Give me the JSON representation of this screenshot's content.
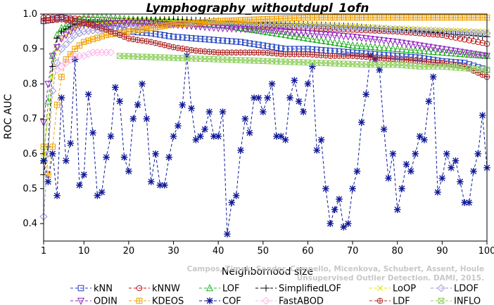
{
  "chart_data": {
    "type": "line",
    "title": "Lymphography_withoutdupl_1ofn",
    "xlabel": "Neighborhood size",
    "ylabel": "ROC AUC",
    "xlim": [
      1,
      100
    ],
    "ylim": [
      0.35,
      1.0
    ],
    "xticks": [
      1,
      10,
      20,
      30,
      40,
      50,
      60,
      70,
      80,
      90,
      100
    ],
    "yticks": [
      0.4,
      0.5,
      0.6,
      0.7,
      0.8,
      0.9,
      1.0
    ],
    "xtick_labels": [
      "1",
      "10",
      "20",
      "30",
      "40",
      "50",
      "60",
      "70",
      "80",
      "90",
      "100"
    ],
    "ytick_labels": [
      "0.4",
      "0.5",
      "0.6",
      "0.7",
      "0.8",
      "0.9",
      "1.0"
    ],
    "grid": false,
    "legend_position": "bottom",
    "watermark": [
      "Campos, Zimek, Sander, Campello, Micenkova, Schubert, Assent, Houle",
      "Unsupervised Outlier Detection. DAMI, 2015."
    ],
    "series": [
      {
        "name": "kNN",
        "color": "#1f3fbf",
        "marker": "square",
        "dash": "4,3",
        "points": [
          [
            1,
            0.98
          ],
          [
            5,
            0.99
          ],
          [
            10,
            0.975
          ],
          [
            15,
            0.965
          ],
          [
            20,
            0.95
          ],
          [
            25,
            0.945
          ],
          [
            30,
            0.935
          ],
          [
            35,
            0.93
          ],
          [
            40,
            0.925
          ],
          [
            45,
            0.92
          ],
          [
            50,
            0.91
          ],
          [
            55,
            0.9
          ],
          [
            60,
            0.9
          ],
          [
            65,
            0.895
          ],
          [
            70,
            0.89
          ],
          [
            75,
            0.885
          ],
          [
            80,
            0.88
          ],
          [
            85,
            0.875
          ],
          [
            90,
            0.865
          ],
          [
            95,
            0.86
          ],
          [
            100,
            0.84
          ]
        ]
      },
      {
        "name": "kNNW",
        "color": "#c01010",
        "marker": "circle",
        "dash": "4,3",
        "points": [
          [
            1,
            0.99
          ],
          [
            5,
            0.99
          ],
          [
            10,
            0.985
          ],
          [
            20,
            0.98
          ],
          [
            30,
            0.975
          ],
          [
            40,
            0.97
          ],
          [
            50,
            0.965
          ],
          [
            60,
            0.96
          ],
          [
            70,
            0.955
          ],
          [
            80,
            0.95
          ],
          [
            90,
            0.94
          ],
          [
            100,
            0.915
          ]
        ]
      },
      {
        "name": "LOF",
        "color": "#20b020",
        "marker": "triangle-up",
        "dash": "4,3",
        "points": [
          [
            1,
            0.58
          ],
          [
            2,
            0.75
          ],
          [
            3,
            0.88
          ],
          [
            4,
            0.94
          ],
          [
            5,
            0.96
          ],
          [
            8,
            0.98
          ],
          [
            10,
            0.99
          ],
          [
            15,
            0.99
          ],
          [
            20,
            0.985
          ],
          [
            30,
            0.98
          ],
          [
            40,
            0.97
          ],
          [
            50,
            0.95
          ],
          [
            60,
            0.93
          ],
          [
            70,
            0.91
          ],
          [
            80,
            0.9
          ],
          [
            90,
            0.89
          ],
          [
            100,
            0.88
          ]
        ]
      },
      {
        "name": "SimplifiedLOF",
        "color": "#000000",
        "marker": "plus",
        "dash": "4,3",
        "points": [
          [
            1,
            0.54
          ],
          [
            2,
            0.62
          ],
          [
            3,
            0.85
          ],
          [
            4,
            0.93
          ],
          [
            5,
            0.95
          ],
          [
            8,
            0.97
          ],
          [
            10,
            0.975
          ],
          [
            20,
            0.98
          ],
          [
            30,
            0.985
          ],
          [
            40,
            0.98
          ],
          [
            50,
            0.975
          ],
          [
            60,
            0.97
          ],
          [
            70,
            0.965
          ],
          [
            80,
            0.955
          ],
          [
            90,
            0.945
          ],
          [
            100,
            0.935
          ]
        ]
      },
      {
        "name": "LoOP",
        "color": "#e0e000",
        "marker": "cross",
        "dash": "4,3",
        "points": [
          [
            1,
            0.6
          ],
          [
            2,
            0.7
          ],
          [
            3,
            0.82
          ],
          [
            4,
            0.9
          ],
          [
            5,
            0.93
          ],
          [
            8,
            0.96
          ],
          [
            10,
            0.97
          ],
          [
            20,
            0.98
          ],
          [
            30,
            0.98
          ],
          [
            40,
            0.975
          ],
          [
            50,
            0.97
          ],
          [
            60,
            0.97
          ],
          [
            70,
            0.965
          ],
          [
            80,
            0.96
          ],
          [
            90,
            0.955
          ],
          [
            100,
            0.95
          ]
        ]
      },
      {
        "name": "LDOF",
        "color": "#9898d8",
        "marker": "diamond",
        "dash": "4,3",
        "points": [
          [
            1,
            0.42
          ],
          [
            2,
            0.6
          ],
          [
            3,
            0.78
          ],
          [
            4,
            0.86
          ],
          [
            5,
            0.9
          ],
          [
            8,
            0.94
          ],
          [
            10,
            0.95
          ],
          [
            20,
            0.965
          ],
          [
            30,
            0.97
          ],
          [
            40,
            0.97
          ],
          [
            50,
            0.97
          ],
          [
            60,
            0.965
          ],
          [
            70,
            0.96
          ],
          [
            80,
            0.955
          ],
          [
            90,
            0.95
          ],
          [
            100,
            0.945
          ]
        ]
      },
      {
        "name": "ODIN",
        "color": "#9020c0",
        "marker": "triangle-down",
        "dash": "4,3",
        "points": [
          [
            1,
            0.69
          ],
          [
            2,
            0.8
          ],
          [
            3,
            0.88
          ],
          [
            5,
            0.93
          ],
          [
            8,
            0.96
          ],
          [
            10,
            0.97
          ],
          [
            20,
            0.975
          ],
          [
            30,
            0.97
          ],
          [
            40,
            0.96
          ],
          [
            50,
            0.955
          ],
          [
            60,
            0.945
          ],
          [
            70,
            0.935
          ],
          [
            80,
            0.92
          ],
          [
            90,
            0.9
          ],
          [
            100,
            0.88
          ]
        ]
      },
      {
        "name": "KDEOS",
        "color": "#f0a000",
        "marker": "boxed-cross",
        "dash": "4,3",
        "points": [
          [
            1,
            0.62
          ],
          [
            2,
            0.54
          ],
          [
            3,
            0.62
          ],
          [
            4,
            0.74
          ],
          [
            5,
            0.82
          ],
          [
            6,
            0.87
          ],
          [
            8,
            0.9
          ],
          [
            10,
            0.92
          ],
          [
            15,
            0.94
          ],
          [
            20,
            0.95
          ],
          [
            30,
            0.97
          ],
          [
            40,
            0.98
          ],
          [
            50,
            0.985
          ],
          [
            60,
            0.99
          ],
          [
            70,
            0.99
          ],
          [
            80,
            0.99
          ],
          [
            90,
            0.99
          ],
          [
            100,
            0.99
          ]
        ]
      },
      {
        "name": "COF",
        "color": "#101a9a",
        "marker": "asterisk",
        "dash": "4,3",
        "points": [
          [
            1,
            0.58
          ],
          [
            2,
            0.52
          ],
          [
            3,
            0.6
          ],
          [
            4,
            0.48
          ],
          [
            5,
            0.76
          ],
          [
            6,
            0.58
          ],
          [
            7,
            0.63
          ],
          [
            8,
            0.87
          ],
          [
            9,
            0.51
          ],
          [
            10,
            0.54
          ],
          [
            11,
            0.77
          ],
          [
            12,
            0.66
          ],
          [
            13,
            0.48
          ],
          [
            14,
            0.49
          ],
          [
            15,
            0.59
          ],
          [
            16,
            0.65
          ],
          [
            17,
            0.79
          ],
          [
            18,
            0.75
          ],
          [
            19,
            0.59
          ],
          [
            20,
            0.55
          ],
          [
            21,
            0.7
          ],
          [
            22,
            0.74
          ],
          [
            23,
            0.8
          ],
          [
            24,
            0.7
          ],
          [
            25,
            0.52
          ],
          [
            26,
            0.6
          ],
          [
            27,
            0.51
          ],
          [
            28,
            0.51
          ],
          [
            29,
            0.59
          ],
          [
            30,
            0.65
          ],
          [
            31,
            0.68
          ],
          [
            32,
            0.74
          ],
          [
            33,
            0.88
          ],
          [
            34,
            0.73
          ],
          [
            35,
            0.64
          ],
          [
            36,
            0.65
          ],
          [
            37,
            0.67
          ],
          [
            38,
            0.72
          ],
          [
            39,
            0.65
          ],
          [
            40,
            0.65
          ],
          [
            41,
            0.72
          ],
          [
            42,
            0.37
          ],
          [
            43,
            0.46
          ],
          [
            44,
            0.48
          ],
          [
            45,
            0.61
          ],
          [
            46,
            0.7
          ],
          [
            47,
            0.66
          ],
          [
            48,
            0.76
          ],
          [
            49,
            0.76
          ],
          [
            50,
            0.72
          ],
          [
            51,
            0.76
          ],
          [
            52,
            0.8
          ],
          [
            53,
            0.65
          ],
          [
            54,
            0.65
          ],
          [
            55,
            0.64
          ],
          [
            56,
            0.76
          ],
          [
            57,
            0.81
          ],
          [
            58,
            0.75
          ],
          [
            59,
            0.72
          ],
          [
            60,
            0.8
          ],
          [
            61,
            0.85
          ],
          [
            62,
            0.61
          ],
          [
            63,
            0.64
          ],
          [
            64,
            0.5
          ],
          [
            65,
            0.4
          ],
          [
            66,
            0.44
          ],
          [
            67,
            0.47
          ],
          [
            68,
            0.39
          ],
          [
            69,
            0.4
          ],
          [
            70,
            0.5
          ],
          [
            71,
            0.55
          ],
          [
            72,
            0.69
          ],
          [
            73,
            0.77
          ],
          [
            74,
            0.88
          ],
          [
            75,
            0.87
          ],
          [
            76,
            0.84
          ],
          [
            77,
            0.67
          ],
          [
            78,
            0.53
          ],
          [
            79,
            0.6
          ],
          [
            80,
            0.44
          ],
          [
            81,
            0.5
          ],
          [
            82,
            0.57
          ],
          [
            83,
            0.55
          ],
          [
            84,
            0.6
          ],
          [
            85,
            0.65
          ],
          [
            86,
            0.64
          ],
          [
            87,
            0.75
          ],
          [
            88,
            0.82
          ],
          [
            89,
            0.49
          ],
          [
            90,
            0.53
          ],
          [
            91,
            0.6
          ],
          [
            92,
            0.56
          ],
          [
            93,
            0.58
          ],
          [
            94,
            0.52
          ],
          [
            95,
            0.46
          ],
          [
            96,
            0.46
          ],
          [
            97,
            0.55
          ],
          [
            98,
            0.6
          ],
          [
            99,
            0.71
          ],
          [
            100,
            0.56
          ]
        ]
      },
      {
        "name": "FastABOD",
        "color": "#ffb0e8",
        "marker": "diamond",
        "dash": "4,3",
        "points": [
          [
            4,
            0.84
          ],
          [
            6,
            0.86
          ],
          [
            8,
            0.88
          ],
          [
            10,
            0.88
          ],
          [
            12,
            0.89
          ],
          [
            14,
            0.89
          ],
          [
            16,
            0.89
          ]
        ]
      },
      {
        "name": "LDF",
        "color": "#b02828",
        "marker": "circle-plus",
        "dash": "4,3",
        "points": [
          [
            1,
            0.98
          ],
          [
            5,
            0.985
          ],
          [
            10,
            0.975
          ],
          [
            15,
            0.955
          ],
          [
            20,
            0.93
          ],
          [
            25,
            0.92
          ],
          [
            30,
            0.905
          ],
          [
            35,
            0.895
          ],
          [
            40,
            0.89
          ],
          [
            45,
            0.89
          ],
          [
            50,
            0.89
          ],
          [
            55,
            0.885
          ],
          [
            60,
            0.885
          ],
          [
            65,
            0.88
          ],
          [
            70,
            0.88
          ],
          [
            75,
            0.875
          ],
          [
            80,
            0.87
          ],
          [
            85,
            0.865
          ],
          [
            90,
            0.86
          ],
          [
            95,
            0.85
          ],
          [
            100,
            0.82
          ]
        ]
      },
      {
        "name": "INFLO",
        "color": "#90d060",
        "marker": "boxed-x",
        "dash": "4,3",
        "points": [
          [
            18,
            0.88
          ],
          [
            74,
            0.855
          ],
          [
            80,
            0.855
          ],
          [
            85,
            0.85
          ],
          [
            90,
            0.85
          ],
          [
            95,
            0.845
          ],
          [
            100,
            0.84
          ]
        ]
      }
    ]
  }
}
